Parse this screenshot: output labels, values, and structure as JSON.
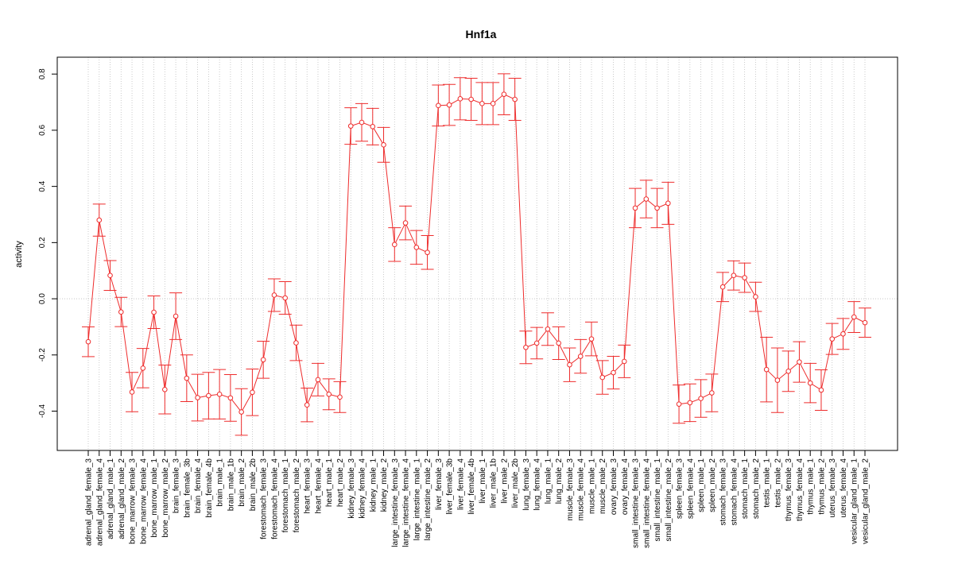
{
  "chart_data": {
    "type": "line",
    "title": "Hnf1a",
    "xlabel": "",
    "ylabel": "activity",
    "ylim": [
      -0.54,
      0.86
    ],
    "yticks": [
      -0.4,
      -0.2,
      0.0,
      0.2,
      0.4,
      0.6,
      0.8
    ],
    "ytick_labels": [
      "-0.4",
      "-0.2",
      "0.0",
      "0.2",
      "0.4",
      "0.6",
      "0.8"
    ],
    "series_color": "#ee2c2c",
    "grid_color": "#bebebe",
    "categories": [
      "adrenal_gland_female_3",
      "adrenal_gland_female_4",
      "adrenal_gland_male_1",
      "adrenal_gland_male_2",
      "bone_marrow_female_3",
      "bone_marrow_female_4",
      "bone_marrow_male_1",
      "bone_marrow_male_2",
      "brain_female_3",
      "brain_female_3b",
      "brain_female_4",
      "brain_female_4b",
      "brain_male_1",
      "brain_male_1b",
      "brain_male_2",
      "brain_male_2b",
      "forestomach_female_3",
      "forestomach_female_4",
      "forestomach_male_1",
      "forestomach_male_2",
      "heart_female_3",
      "heart_female_4",
      "heart_male_1",
      "heart_male_2",
      "kidney_female_3",
      "kidney_female_4",
      "kidney_male_1",
      "kidney_male_2",
      "large_intestine_female_3",
      "large_intestine_female_4",
      "large_intestine_male_1",
      "large_intestine_male_2",
      "liver_female_3",
      "liver_female_3b",
      "liver_female_4",
      "liver_female_4b",
      "liver_male_1",
      "liver_male_1b",
      "liver_male_2",
      "liver_male_2b",
      "lung_female_3",
      "lung_female_4",
      "lung_male_1",
      "lung_male_2",
      "muscle_female_3",
      "muscle_female_4",
      "muscle_male_1",
      "muscle_male_2",
      "ovary_female_3",
      "ovary_female_4",
      "small_intestine_female_3",
      "small_intestine_female_4",
      "small_intestine_male_1",
      "small_intestine_male_2",
      "spleen_female_3",
      "spleen_female_4",
      "spleen_male_1",
      "spleen_male_2",
      "stomach_female_3",
      "stomach_female_4",
      "stomach_male_1",
      "stomach_male_2",
      "testis_male_1",
      "testis_male_2",
      "thymus_female_3",
      "thymus_female_4",
      "thymus_male_1",
      "thymus_male_2",
      "uterus_female_3",
      "uterus_female_4",
      "vesicular_gland_male_1",
      "vesicular_gland_male_2"
    ],
    "values": [
      -0.153,
      0.28,
      0.083,
      -0.047,
      -0.332,
      -0.247,
      -0.048,
      -0.323,
      -0.062,
      -0.283,
      -0.352,
      -0.345,
      -0.34,
      -0.353,
      -0.403,
      -0.333,
      -0.217,
      0.013,
      0.003,
      -0.157,
      -0.378,
      -0.288,
      -0.34,
      -0.35,
      0.615,
      0.628,
      0.613,
      0.548,
      0.193,
      0.27,
      0.183,
      0.165,
      0.688,
      0.69,
      0.712,
      0.71,
      0.695,
      0.695,
      0.728,
      0.71,
      -0.173,
      -0.158,
      -0.108,
      -0.158,
      -0.235,
      -0.205,
      -0.143,
      -0.28,
      -0.263,
      -0.223,
      0.323,
      0.355,
      0.323,
      0.34,
      -0.375,
      -0.37,
      -0.355,
      -0.335,
      0.042,
      0.083,
      0.075,
      0.007,
      -0.252,
      -0.29,
      -0.258,
      -0.225,
      -0.3,
      -0.325,
      -0.143,
      -0.125,
      -0.065,
      -0.085
    ],
    "errors": [
      0.053,
      0.057,
      0.053,
      0.052,
      0.07,
      0.07,
      0.058,
      0.087,
      0.083,
      0.083,
      0.083,
      0.083,
      0.088,
      0.083,
      0.083,
      0.083,
      0.066,
      0.058,
      0.058,
      0.063,
      0.06,
      0.058,
      0.055,
      0.055,
      0.065,
      0.067,
      0.065,
      0.062,
      0.06,
      0.06,
      0.06,
      0.06,
      0.073,
      0.073,
      0.075,
      0.075,
      0.075,
      0.075,
      0.073,
      0.075,
      0.058,
      0.056,
      0.058,
      0.058,
      0.06,
      0.06,
      0.06,
      0.06,
      0.058,
      0.058,
      0.07,
      0.067,
      0.07,
      0.075,
      0.068,
      0.067,
      0.067,
      0.067,
      0.052,
      0.052,
      0.052,
      0.052,
      0.115,
      0.115,
      0.072,
      0.072,
      0.07,
      0.072,
      0.055,
      0.055,
      0.055,
      0.052
    ]
  }
}
